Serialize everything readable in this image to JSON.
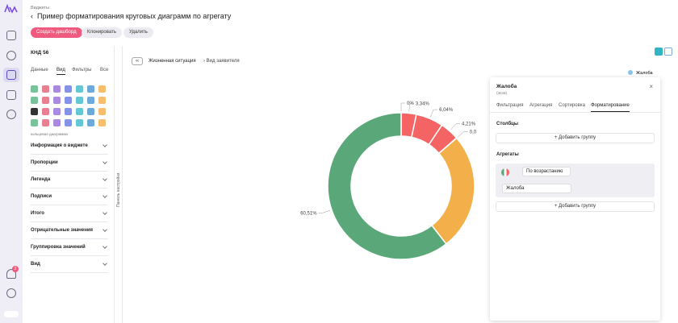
{
  "header": {
    "breadcrumb": "Виджеты",
    "title": "Пример форматирования круговых диаграмм по агрегату",
    "buttons": [
      "Создать дашборд",
      "Клонировать",
      "Удалить"
    ]
  },
  "nav": {
    "badge": "2"
  },
  "settings": {
    "dataset": "КНД 56",
    "tabs": [
      "Данные",
      "Вид",
      "Фильтры",
      "Все"
    ],
    "chart_kind": "кольцевая диаграмма",
    "sections": [
      "Информация о виджете",
      "Пропорции",
      "Легенда",
      "Подписи",
      "Итого",
      "Отрицательные значения",
      "Группировка значений",
      "Вид"
    ],
    "panel_label": "Панель настройки"
  },
  "main": {
    "breadcrumb": [
      "Жизненная ситуация",
      "Вид заявителя"
    ],
    "chart_data": {
      "type": "pie",
      "series_name": "Жалоба",
      "values": [
        0,
        3.34,
        6.04,
        4.21,
        0.05,
        25.85,
        60.51
      ],
      "value_labels": [
        "0%",
        "3,34%",
        "6,04%",
        "4,21%",
        "0,0",
        null,
        "60,51%"
      ],
      "colors": [
        "#f46464",
        "#f46464",
        "#f46464",
        "#f46464",
        "#f3b04a",
        "#f3b04a",
        "#5aa77a"
      ]
    }
  },
  "format_panel": {
    "title": "Жалоба",
    "subtitle": "(экза)",
    "tabs": [
      "Фильтрация",
      "Агрегация",
      "Сортировка",
      "Форматирование"
    ],
    "columns_title": "Столбцы",
    "add_group": "Добавить группу",
    "aggregates_title": "Агрегаты",
    "sort": "По возрастанию",
    "field": "Жалоба",
    "add_group_2": "Добавить группу"
  }
}
